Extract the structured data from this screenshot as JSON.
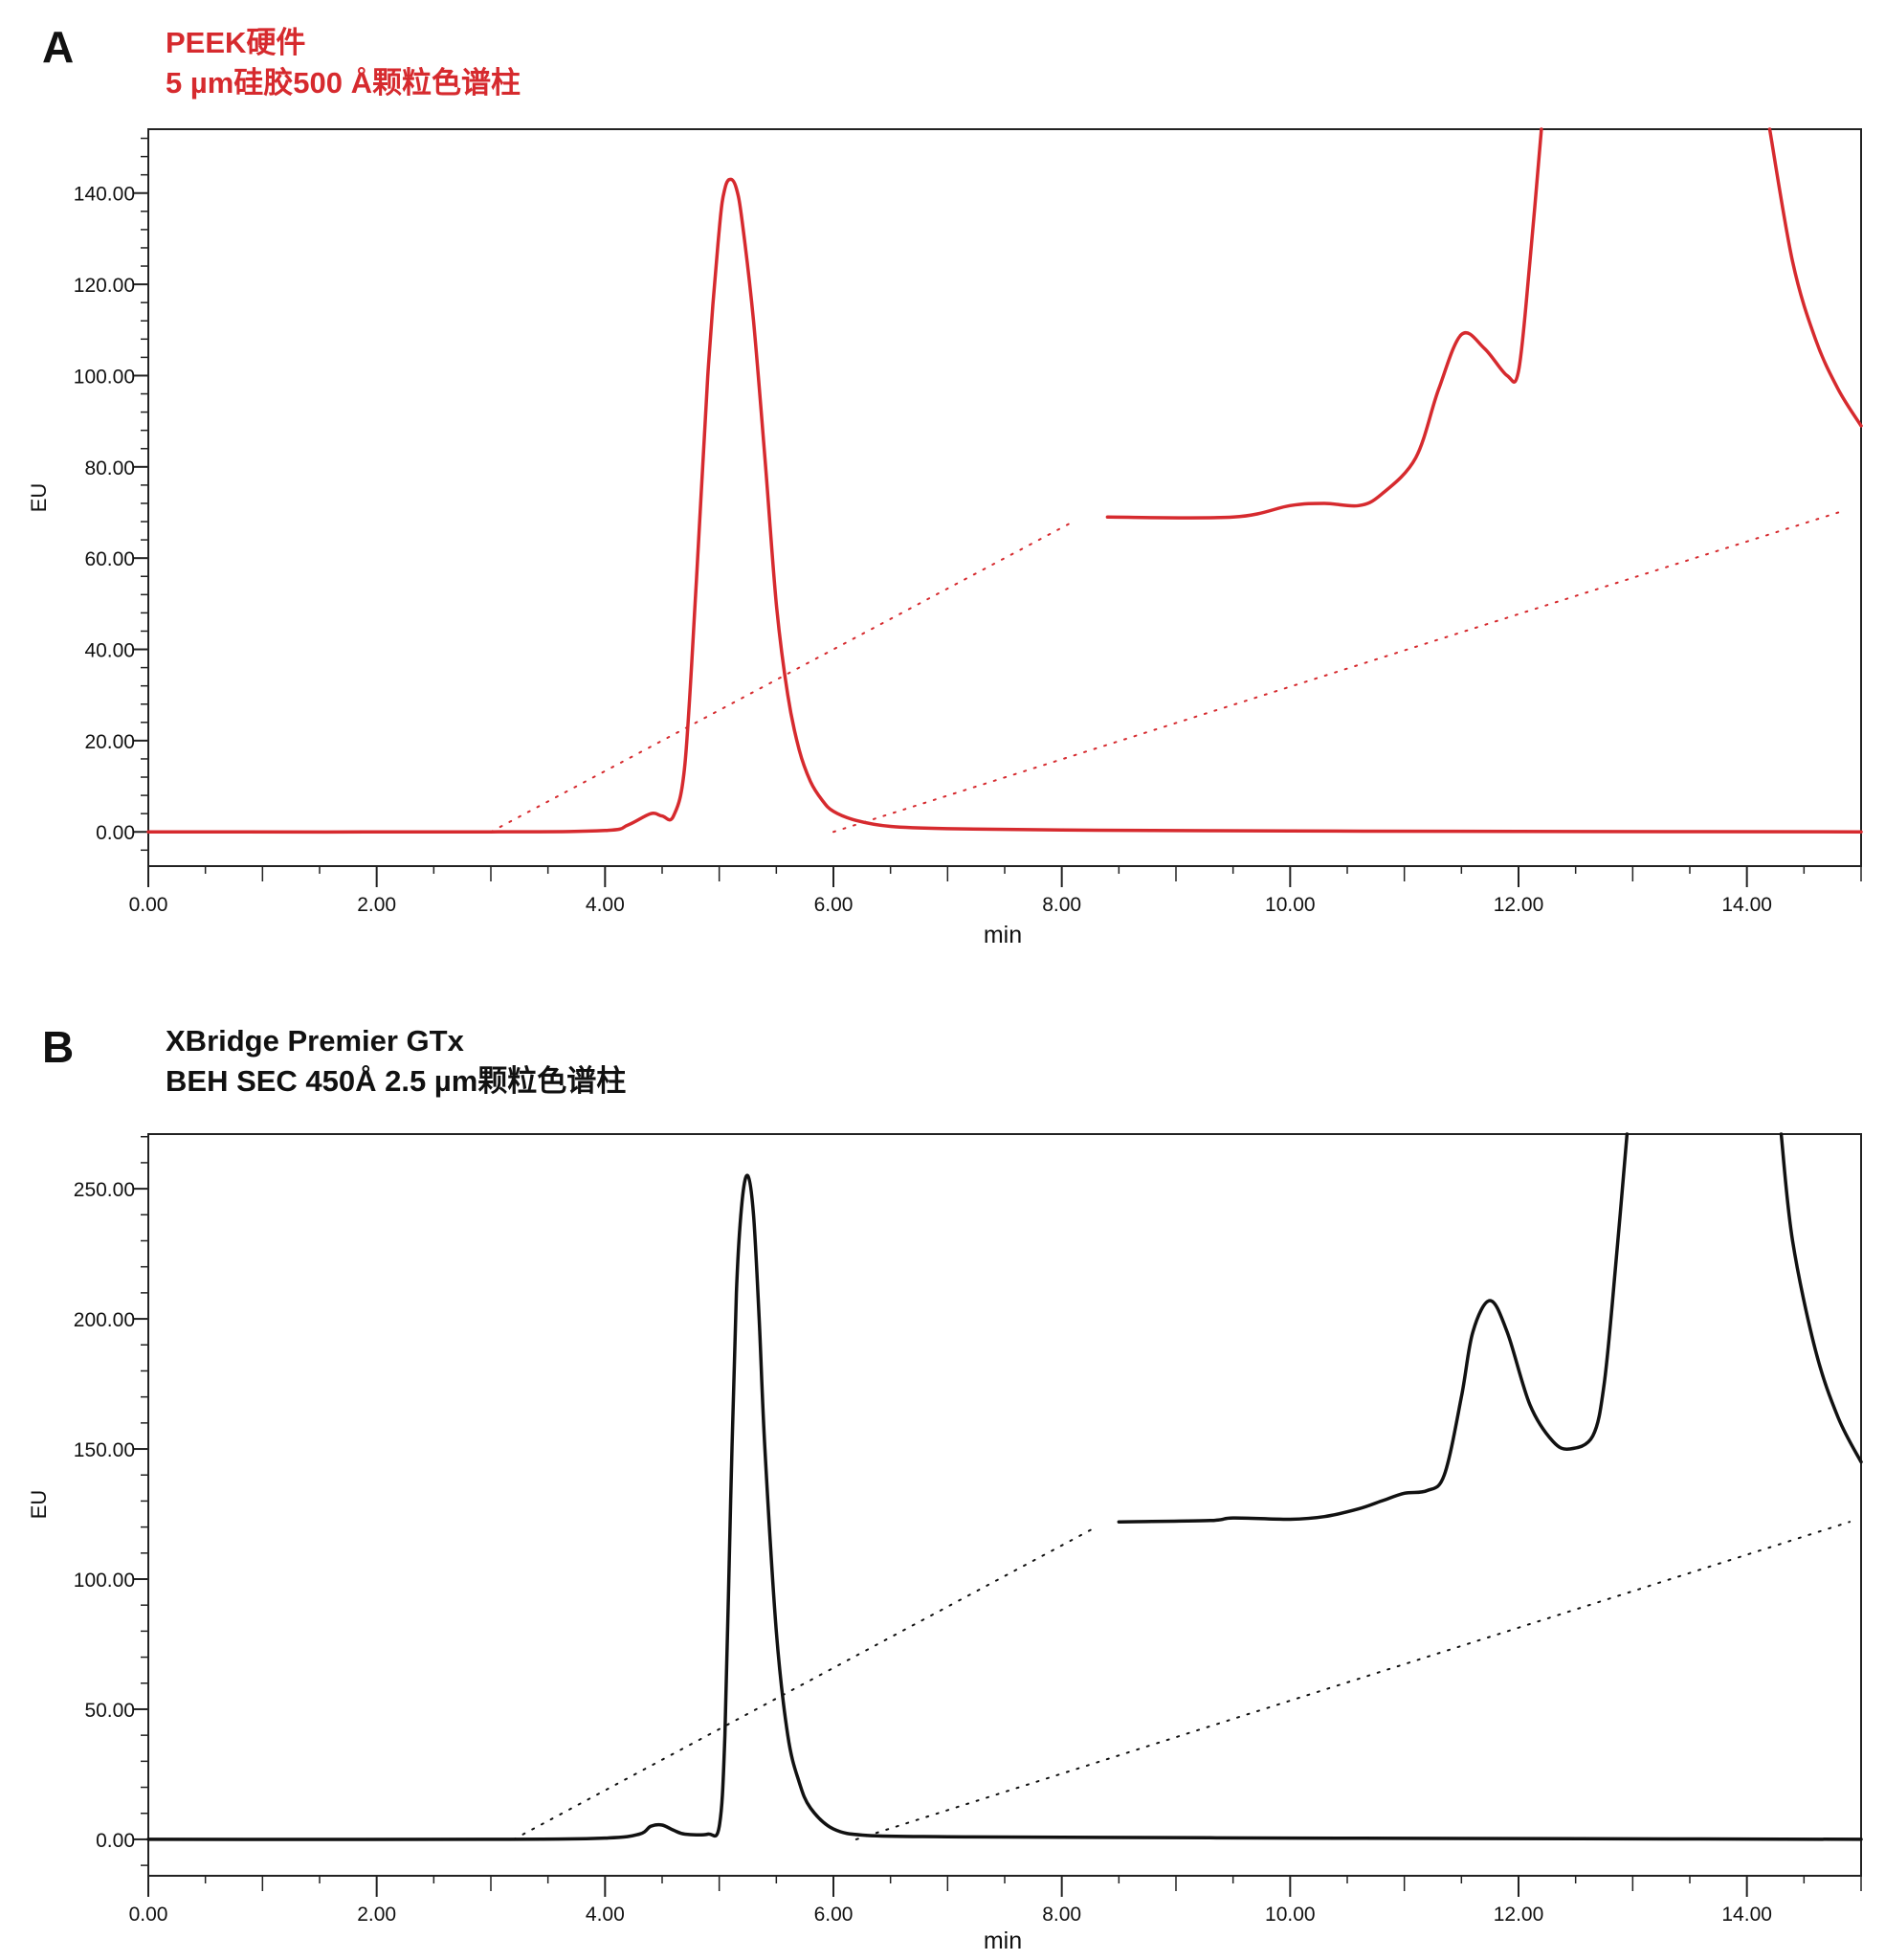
{
  "chart_data": [
    {
      "type": "line",
      "panel_letter": "A",
      "title_line1": "PEEK硬件",
      "title_line2": "5 µm硅胶500 Å颗粒色谱柱",
      "color": "#d62a2e",
      "xlabel": "min",
      "ylabel": "EU",
      "xlim": [
        0,
        15
      ],
      "ylim": [
        -7.5,
        154
      ],
      "xticks": [
        "0.00",
        "2.00",
        "4.00",
        "6.00",
        "8.00",
        "10.00",
        "12.00",
        "14.00"
      ],
      "yticks": [
        "0.00",
        "20.00",
        "40.00",
        "60.00",
        "80.00",
        "100.00",
        "120.00",
        "140.00"
      ],
      "series": [
        {
          "role": "chromatogram",
          "x": [
            0,
            3,
            4,
            4.2,
            4.4,
            4.5,
            4.6,
            4.7,
            4.8,
            4.9,
            5.0,
            5.05,
            5.1,
            5.15,
            5.2,
            5.3,
            5.4,
            5.5,
            5.6,
            5.7,
            5.8,
            5.9,
            6.0,
            6.2,
            6.5,
            7,
            8,
            10,
            12,
            15
          ],
          "y": [
            0,
            0,
            0.3,
            1.5,
            4.0,
            3.5,
            3.5,
            15,
            55,
            100,
            132,
            141,
            143,
            141,
            134,
            112,
            82,
            50,
            30,
            18,
            11,
            7,
            4.5,
            2.5,
            1.2,
            0.7,
            0.4,
            0.2,
            0.1,
            0
          ]
        },
        {
          "role": "inset-chromatogram",
          "x": [
            8.4,
            9.5,
            10.0,
            10.3,
            10.6,
            10.8,
            11.1,
            11.3,
            11.5,
            11.7,
            11.9,
            12.0,
            12.1,
            12.2
          ],
          "y": [
            69,
            69,
            71.5,
            72,
            71.5,
            74,
            82,
            97,
            109,
            106,
            100,
            101,
            125,
            154
          ]
        },
        {
          "role": "inset-chromatogram",
          "x": [
            14.2,
            14.4,
            14.6,
            14.8,
            15.0
          ],
          "y": [
            154,
            125,
            108,
            97,
            89
          ]
        }
      ],
      "zoom_lines": [
        {
          "x": [
            3.0,
            8.1
          ],
          "y": [
            0,
            68
          ]
        },
        {
          "x": [
            6.0,
            14.8
          ],
          "y": [
            0,
            70
          ]
        }
      ]
    },
    {
      "type": "line",
      "panel_letter": "B",
      "title_line1": "XBridge Premier GTx",
      "title_line2": "BEH SEC 450Å 2.5 µm颗粒色谱柱",
      "color": "#111111",
      "xlabel": "min",
      "ylabel": "EU",
      "xlim": [
        0,
        15
      ],
      "ylim": [
        -14,
        271
      ],
      "xticks": [
        "0.00",
        "2.00",
        "4.00",
        "6.00",
        "8.00",
        "10.00",
        "12.00",
        "14.00"
      ],
      "yticks": [
        "0.00",
        "50.00",
        "100.00",
        "150.00",
        "200.00",
        "250.00"
      ],
      "series": [
        {
          "role": "chromatogram",
          "x": [
            0,
            3,
            4,
            4.3,
            4.4,
            4.5,
            4.6,
            4.7,
            4.9,
            5.0,
            5.05,
            5.1,
            5.15,
            5.2,
            5.25,
            5.3,
            5.35,
            5.4,
            5.5,
            5.6,
            5.7,
            5.8,
            6.0,
            6.3,
            7,
            8,
            10,
            12,
            15
          ],
          "y": [
            0,
            0,
            0.5,
            2,
            5,
            5.5,
            3.5,
            2,
            2,
            5,
            40,
            130,
            210,
            245,
            255,
            240,
            200,
            150,
            80,
            40,
            22,
            12,
            4,
            1.5,
            1,
            0.8,
            0.5,
            0.3,
            0
          ]
        },
        {
          "role": "inset-chromatogram",
          "x": [
            8.5,
            9.3,
            9.5,
            10.0,
            10.3,
            10.6,
            10.8,
            11.0,
            11.2,
            11.35,
            11.5,
            11.6,
            11.75,
            11.9,
            12.1,
            12.3,
            12.45,
            12.65,
            12.75,
            12.85,
            12.95
          ],
          "y": [
            122,
            122.5,
            123.5,
            123,
            124,
            127,
            130,
            133,
            134,
            140,
            170,
            195,
            207,
            195,
            167,
            153,
            150,
            155,
            175,
            220,
            271
          ]
        },
        {
          "role": "inset-chromatogram",
          "x": [
            14.3,
            14.4,
            14.6,
            14.8,
            15.0
          ],
          "y": [
            271,
            230,
            188,
            162,
            145
          ]
        }
      ],
      "zoom_lines": [
        {
          "x": [
            3.2,
            8.3
          ],
          "y": [
            0,
            120
          ]
        },
        {
          "x": [
            6.2,
            14.9
          ],
          "y": [
            0,
            122
          ]
        }
      ]
    }
  ]
}
